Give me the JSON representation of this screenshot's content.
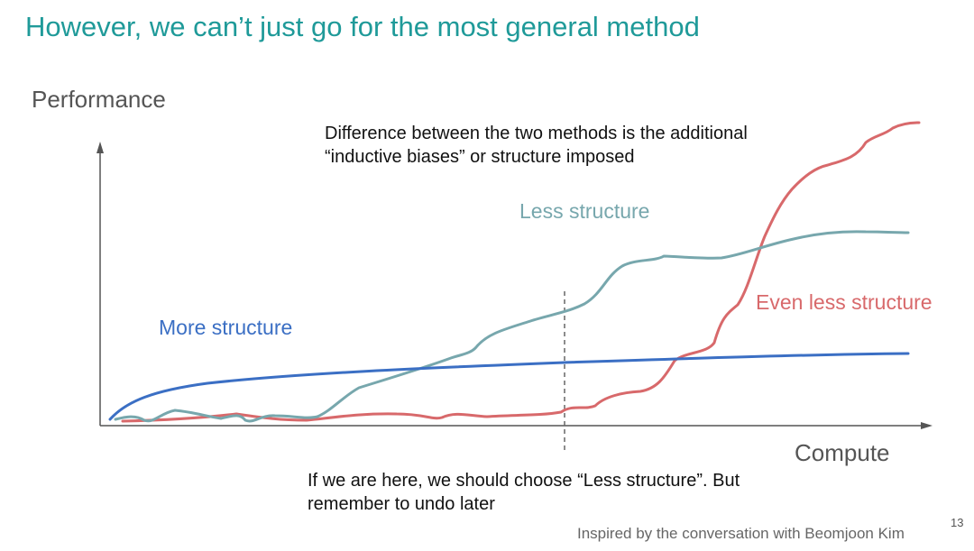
{
  "slide": {
    "title": "However, we can’t just go for the most general method",
    "page_number": "13",
    "credit": "Inspired by the conversation with Beomjoon Kim"
  },
  "annotations": {
    "top_note": "Difference between the two methods is the additional “inductive biases” or structure imposed",
    "bottom_note": "If we are here, we should choose “Less structure”. But remember to undo later"
  },
  "colors": {
    "title": "#1f9a99",
    "more_structure": "#3b6fc4",
    "less_structure": "#77a7ad",
    "even_less_structure": "#d8696b",
    "axis": "#555555",
    "marker": "#666666"
  },
  "chart_data": {
    "type": "line",
    "xlabel": "Compute",
    "ylabel": "Performance",
    "axis_ticks": "none",
    "series": [
      {
        "name": "More structure",
        "key": "more_structure",
        "trend": "rises quickly at low compute, then flattens"
      },
      {
        "name": "Less structure",
        "key": "less_structure",
        "trend": "noisy and low, climbs steadily in the middle, then plateaus above More structure"
      },
      {
        "name": "Even less structure",
        "key": "even_less_structure",
        "trend": "flat near the bottom until late, then rises steeply and ends highest"
      }
    ],
    "marker": {
      "style": "dashed vertical line",
      "meaning": "current compute budget, where Less structure is best"
    }
  }
}
